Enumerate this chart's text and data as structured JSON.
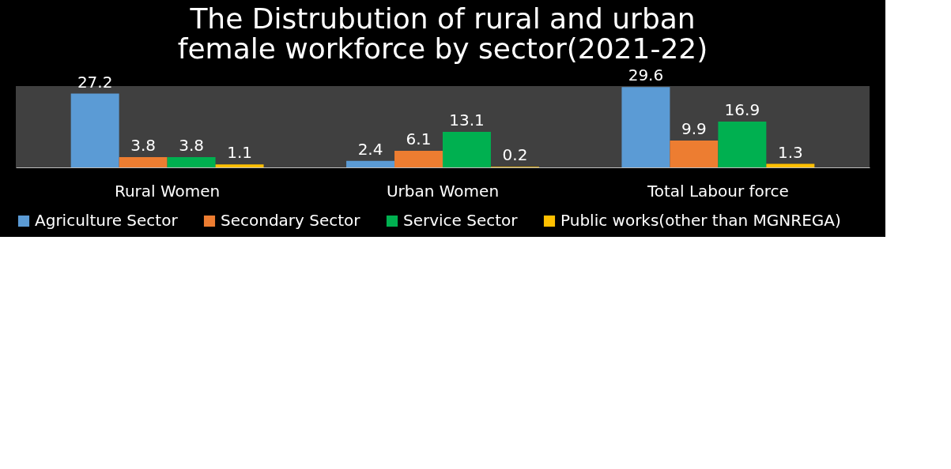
{
  "chart_data": {
    "type": "bar",
    "title": "The Distrubution of rural and urban female workforce by sector(2021-22)",
    "categories": [
      "Rural Women",
      "Urban Women",
      "Total Labour force"
    ],
    "series": [
      {
        "name": "Agriculture Sector",
        "color": "#5b9bd5",
        "values": [
          27.2,
          2.4,
          29.6
        ]
      },
      {
        "name": "Secondary Sector",
        "color": "#ed7d31",
        "values": [
          3.8,
          6.1,
          9.9
        ]
      },
      {
        "name": "Service Sector",
        "color": "#00b050",
        "values": [
          3.8,
          13.1,
          16.9
        ]
      },
      {
        "name": "Public works(other than MGNREGA)",
        "color": "#ffc000",
        "values": [
          1.1,
          0.2,
          1.3
        ]
      }
    ],
    "data_labels": true,
    "legend": "bottom",
    "grid": false
  }
}
